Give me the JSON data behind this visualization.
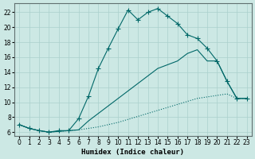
{
  "xlabel": "Humidex (Indice chaleur)",
  "bg_color": "#cce8e4",
  "line_color": "#006868",
  "grid_color": "#aad0cc",
  "xlim": [
    -0.5,
    23.5
  ],
  "ylim": [
    5.5,
    23.2
  ],
  "xticks": [
    0,
    1,
    2,
    3,
    4,
    5,
    6,
    7,
    8,
    9,
    10,
    11,
    12,
    13,
    14,
    15,
    16,
    17,
    18,
    19,
    20,
    21,
    22,
    23
  ],
  "yticks": [
    6,
    8,
    10,
    12,
    14,
    16,
    18,
    20,
    22
  ],
  "line1_x": [
    0,
    1,
    2,
    3,
    4,
    5,
    6,
    7,
    8,
    9,
    10,
    11,
    12,
    13,
    14,
    15,
    16,
    17,
    18,
    19,
    20,
    21,
    22,
    23
  ],
  "line1_y": [
    7.0,
    6.5,
    6.2,
    6.0,
    6.1,
    6.2,
    6.3,
    6.5,
    6.7,
    7.0,
    7.3,
    7.7,
    8.1,
    8.5,
    8.9,
    9.3,
    9.7,
    10.1,
    10.5,
    10.7,
    10.9,
    11.1,
    10.5,
    10.5
  ],
  "line2_x": [
    0,
    1,
    2,
    3,
    4,
    5,
    6,
    7,
    8,
    9,
    10,
    11,
    12,
    13,
    14,
    15,
    16,
    17,
    18,
    19,
    20,
    21,
    22,
    23
  ],
  "line2_y": [
    7.0,
    6.5,
    6.2,
    6.0,
    6.1,
    6.2,
    6.3,
    7.5,
    8.5,
    9.5,
    10.5,
    11.5,
    12.5,
    13.5,
    14.5,
    15.0,
    15.5,
    16.5,
    17.0,
    15.5,
    15.5,
    12.8,
    10.5,
    10.5
  ],
  "line3_x": [
    0,
    1,
    2,
    3,
    4,
    5,
    6,
    7,
    8,
    9,
    10,
    11,
    12,
    13,
    14,
    15,
    16,
    17,
    18,
    19,
    20,
    21,
    22,
    23
  ],
  "line3_y": [
    7.0,
    6.5,
    6.2,
    6.0,
    6.2,
    6.2,
    7.8,
    10.8,
    14.5,
    17.2,
    19.8,
    22.3,
    21.0,
    22.0,
    22.5,
    21.5,
    20.5,
    19.0,
    18.5,
    17.2,
    15.5,
    12.8,
    10.5,
    10.5
  ]
}
